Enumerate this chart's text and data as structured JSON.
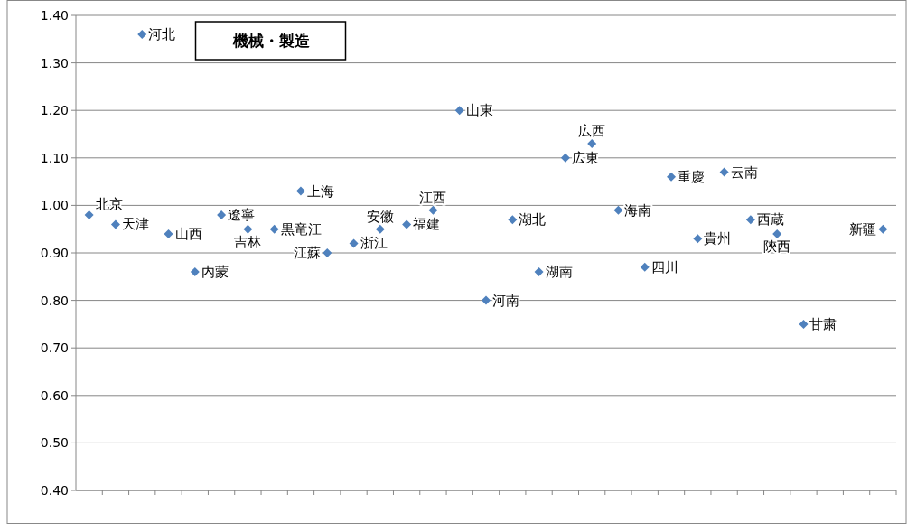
{
  "chart_data": {
    "type": "scatter",
    "title": "機械・製造",
    "categories": [
      null,
      null,
      null,
      null,
      null,
      null,
      null,
      null,
      null,
      null,
      null,
      null,
      null,
      null,
      null,
      null,
      null,
      null,
      null,
      null,
      null,
      null,
      null,
      null,
      null,
      null,
      null,
      null,
      null,
      null,
      null
    ],
    "series": [
      {
        "name": "北京",
        "color": "#4f81bd",
        "values": [
          0.98,
          null,
          null,
          null,
          null,
          null,
          null,
          null,
          null,
          null,
          null,
          null,
          null,
          null,
          null,
          null,
          null,
          null,
          null,
          null,
          null,
          null,
          null,
          null,
          null,
          null,
          null,
          null,
          null,
          null,
          null
        ]
      },
      {
        "name": "天津",
        "color": "#4f81bd",
        "values": [
          null,
          0.96,
          null,
          null,
          null,
          null,
          null,
          null,
          null,
          null,
          null,
          null,
          null,
          null,
          null,
          null,
          null,
          null,
          null,
          null,
          null,
          null,
          null,
          null,
          null,
          null,
          null,
          null,
          null,
          null,
          null
        ]
      },
      {
        "name": "河北",
        "color": "#4f81bd",
        "values": [
          null,
          null,
          1.36,
          null,
          null,
          null,
          null,
          null,
          null,
          null,
          null,
          null,
          null,
          null,
          null,
          null,
          null,
          null,
          null,
          null,
          null,
          null,
          null,
          null,
          null,
          null,
          null,
          null,
          null,
          null,
          null
        ]
      },
      {
        "name": "山西",
        "color": "#4f81bd",
        "values": [
          null,
          null,
          null,
          0.94,
          null,
          null,
          null,
          null,
          null,
          null,
          null,
          null,
          null,
          null,
          null,
          null,
          null,
          null,
          null,
          null,
          null,
          null,
          null,
          null,
          null,
          null,
          null,
          null,
          null,
          null,
          null
        ]
      },
      {
        "name": "内蒙",
        "color": "#4f81bd",
        "values": [
          null,
          null,
          null,
          null,
          0.86,
          null,
          null,
          null,
          null,
          null,
          null,
          null,
          null,
          null,
          null,
          null,
          null,
          null,
          null,
          null,
          null,
          null,
          null,
          null,
          null,
          null,
          null,
          null,
          null,
          null,
          null
        ]
      },
      {
        "name": "遼寧",
        "color": "#4f81bd",
        "values": [
          null,
          null,
          null,
          null,
          null,
          0.98,
          null,
          null,
          null,
          null,
          null,
          null,
          null,
          null,
          null,
          null,
          null,
          null,
          null,
          null,
          null,
          null,
          null,
          null,
          null,
          null,
          null,
          null,
          null,
          null,
          null
        ]
      },
      {
        "name": "吉林",
        "color": "#4f81bd",
        "values": [
          null,
          null,
          null,
          null,
          null,
          null,
          0.95,
          null,
          null,
          null,
          null,
          null,
          null,
          null,
          null,
          null,
          null,
          null,
          null,
          null,
          null,
          null,
          null,
          null,
          null,
          null,
          null,
          null,
          null,
          null,
          null
        ]
      },
      {
        "name": "黒竜江",
        "color": "#4f81bd",
        "values": [
          null,
          null,
          null,
          null,
          null,
          null,
          null,
          0.95,
          null,
          null,
          null,
          null,
          null,
          null,
          null,
          null,
          null,
          null,
          null,
          null,
          null,
          null,
          null,
          null,
          null,
          null,
          null,
          null,
          null,
          null,
          null
        ]
      },
      {
        "name": "上海",
        "color": "#4f81bd",
        "values": [
          null,
          null,
          null,
          null,
          null,
          null,
          null,
          null,
          1.03,
          null,
          null,
          null,
          null,
          null,
          null,
          null,
          null,
          null,
          null,
          null,
          null,
          null,
          null,
          null,
          null,
          null,
          null,
          null,
          null,
          null,
          null
        ]
      },
      {
        "name": "江蘇",
        "color": "#4f81bd",
        "values": [
          null,
          null,
          null,
          null,
          null,
          null,
          null,
          null,
          null,
          0.9,
          null,
          null,
          null,
          null,
          null,
          null,
          null,
          null,
          null,
          null,
          null,
          null,
          null,
          null,
          null,
          null,
          null,
          null,
          null,
          null,
          null
        ]
      },
      {
        "name": "浙江",
        "color": "#4f81bd",
        "values": [
          null,
          null,
          null,
          null,
          null,
          null,
          null,
          null,
          null,
          null,
          0.92,
          null,
          null,
          null,
          null,
          null,
          null,
          null,
          null,
          null,
          null,
          null,
          null,
          null,
          null,
          null,
          null,
          null,
          null,
          null,
          null
        ]
      },
      {
        "name": "安徽",
        "color": "#4f81bd",
        "values": [
          null,
          null,
          null,
          null,
          null,
          null,
          null,
          null,
          null,
          null,
          null,
          0.95,
          null,
          null,
          null,
          null,
          null,
          null,
          null,
          null,
          null,
          null,
          null,
          null,
          null,
          null,
          null,
          null,
          null,
          null,
          null
        ]
      },
      {
        "name": "福建",
        "color": "#4f81bd",
        "values": [
          null,
          null,
          null,
          null,
          null,
          null,
          null,
          null,
          null,
          null,
          null,
          null,
          0.96,
          null,
          null,
          null,
          null,
          null,
          null,
          null,
          null,
          null,
          null,
          null,
          null,
          null,
          null,
          null,
          null,
          null,
          null
        ]
      },
      {
        "name": "江西",
        "color": "#4f81bd",
        "values": [
          null,
          null,
          null,
          null,
          null,
          null,
          null,
          null,
          null,
          null,
          null,
          null,
          null,
          0.99,
          null,
          null,
          null,
          null,
          null,
          null,
          null,
          null,
          null,
          null,
          null,
          null,
          null,
          null,
          null,
          null,
          null
        ]
      },
      {
        "name": "山東",
        "color": "#4f81bd",
        "values": [
          null,
          null,
          null,
          null,
          null,
          null,
          null,
          null,
          null,
          null,
          null,
          null,
          null,
          null,
          1.2,
          null,
          null,
          null,
          null,
          null,
          null,
          null,
          null,
          null,
          null,
          null,
          null,
          null,
          null,
          null,
          null
        ]
      },
      {
        "name": "河南",
        "color": "#4f81bd",
        "values": [
          null,
          null,
          null,
          null,
          null,
          null,
          null,
          null,
          null,
          null,
          null,
          null,
          null,
          null,
          null,
          0.8,
          null,
          null,
          null,
          null,
          null,
          null,
          null,
          null,
          null,
          null,
          null,
          null,
          null,
          null,
          null
        ]
      },
      {
        "name": "湖北",
        "color": "#4f81bd",
        "values": [
          null,
          null,
          null,
          null,
          null,
          null,
          null,
          null,
          null,
          null,
          null,
          null,
          null,
          null,
          null,
          null,
          0.97,
          null,
          null,
          null,
          null,
          null,
          null,
          null,
          null,
          null,
          null,
          null,
          null,
          null,
          null
        ]
      },
      {
        "name": "湖南",
        "color": "#4f81bd",
        "values": [
          null,
          null,
          null,
          null,
          null,
          null,
          null,
          null,
          null,
          null,
          null,
          null,
          null,
          null,
          null,
          null,
          null,
          0.86,
          null,
          null,
          null,
          null,
          null,
          null,
          null,
          null,
          null,
          null,
          null,
          null,
          null
        ]
      },
      {
        "name": "広東",
        "color": "#4f81bd",
        "values": [
          null,
          null,
          null,
          null,
          null,
          null,
          null,
          null,
          null,
          null,
          null,
          null,
          null,
          null,
          null,
          null,
          null,
          null,
          1.1,
          null,
          null,
          null,
          null,
          null,
          null,
          null,
          null,
          null,
          null,
          null,
          null
        ]
      },
      {
        "name": "広西",
        "color": "#4f81bd",
        "values": [
          null,
          null,
          null,
          null,
          null,
          null,
          null,
          null,
          null,
          null,
          null,
          null,
          null,
          null,
          null,
          null,
          null,
          null,
          null,
          1.13,
          null,
          null,
          null,
          null,
          null,
          null,
          null,
          null,
          null,
          null,
          null
        ]
      },
      {
        "name": "海南",
        "color": "#4f81bd",
        "values": [
          null,
          null,
          null,
          null,
          null,
          null,
          null,
          null,
          null,
          null,
          null,
          null,
          null,
          null,
          null,
          null,
          null,
          null,
          null,
          null,
          0.99,
          null,
          null,
          null,
          null,
          null,
          null,
          null,
          null,
          null,
          null
        ]
      },
      {
        "name": "四川",
        "color": "#4f81bd",
        "values": [
          null,
          null,
          null,
          null,
          null,
          null,
          null,
          null,
          null,
          null,
          null,
          null,
          null,
          null,
          null,
          null,
          null,
          null,
          null,
          null,
          null,
          0.87,
          null,
          null,
          null,
          null,
          null,
          null,
          null,
          null,
          null
        ]
      },
      {
        "name": "重慶",
        "color": "#4f81bd",
        "values": [
          null,
          null,
          null,
          null,
          null,
          null,
          null,
          null,
          null,
          null,
          null,
          null,
          null,
          null,
          null,
          null,
          null,
          null,
          null,
          null,
          null,
          null,
          1.06,
          null,
          null,
          null,
          null,
          null,
          null,
          null,
          null
        ]
      },
      {
        "name": "貴州",
        "color": "#4f81bd",
        "values": [
          null,
          null,
          null,
          null,
          null,
          null,
          null,
          null,
          null,
          null,
          null,
          null,
          null,
          null,
          null,
          null,
          null,
          null,
          null,
          null,
          null,
          null,
          null,
          0.93,
          null,
          null,
          null,
          null,
          null,
          null,
          null
        ]
      },
      {
        "name": "云南",
        "color": "#4f81bd",
        "values": [
          null,
          null,
          null,
          null,
          null,
          null,
          null,
          null,
          null,
          null,
          null,
          null,
          null,
          null,
          null,
          null,
          null,
          null,
          null,
          null,
          null,
          null,
          null,
          null,
          1.07,
          null,
          null,
          null,
          null,
          null,
          null
        ]
      },
      {
        "name": "西蔵",
        "color": "#4f81bd",
        "values": [
          null,
          null,
          null,
          null,
          null,
          null,
          null,
          null,
          null,
          null,
          null,
          null,
          null,
          null,
          null,
          null,
          null,
          null,
          null,
          null,
          null,
          null,
          null,
          null,
          null,
          0.97,
          null,
          null,
          null,
          null,
          null
        ]
      },
      {
        "name": "陝西",
        "color": "#4f81bd",
        "values": [
          null,
          null,
          null,
          null,
          null,
          null,
          null,
          null,
          null,
          null,
          null,
          null,
          null,
          null,
          null,
          null,
          null,
          null,
          null,
          null,
          null,
          null,
          null,
          null,
          null,
          null,
          0.94,
          null,
          null,
          null,
          null
        ]
      },
      {
        "name": "甘粛",
        "color": "#4f81bd",
        "values": [
          null,
          null,
          null,
          null,
          null,
          null,
          null,
          null,
          null,
          null,
          null,
          null,
          null,
          null,
          null,
          null,
          null,
          null,
          null,
          null,
          null,
          null,
          null,
          null,
          null,
          null,
          null,
          0.75,
          null,
          null,
          null
        ]
      },
      {
        "name": "新疆",
        "color": "#4f81bd",
        "values": [
          null,
          null,
          null,
          null,
          null,
          null,
          null,
          null,
          null,
          null,
          null,
          null,
          null,
          null,
          null,
          null,
          null,
          null,
          null,
          null,
          null,
          null,
          null,
          null,
          null,
          null,
          null,
          null,
          null,
          null,
          0.95
        ]
      }
    ],
    "marker": "diamond",
    "ylim": [
      0.4,
      1.4
    ],
    "yticks": [
      {
        "value": 0.4,
        "label": "0.40"
      },
      {
        "value": 0.5,
        "label": "0.50"
      },
      {
        "value": 0.6,
        "label": "0.60"
      },
      {
        "value": 0.7,
        "label": "0.70"
      },
      {
        "value": 0.8,
        "label": "0.80"
      },
      {
        "value": 0.9,
        "label": "0.90"
      },
      {
        "value": 1.0,
        "label": "1.00"
      },
      {
        "value": 1.1,
        "label": "1.10"
      },
      {
        "value": 1.2,
        "label": "1.20"
      },
      {
        "value": 1.3,
        "label": "1.30"
      },
      {
        "value": 1.4,
        "label": "1.40"
      }
    ],
    "grid": "y",
    "tick_labels": "y"
  }
}
